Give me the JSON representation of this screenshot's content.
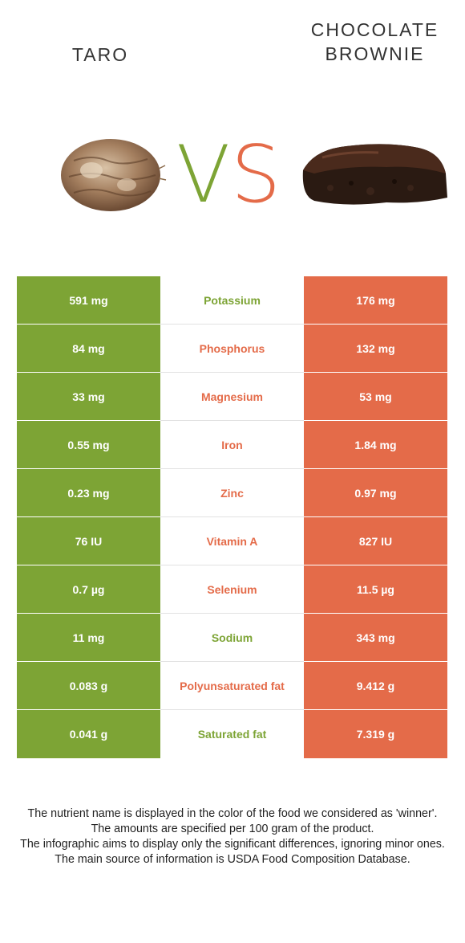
{
  "header": {
    "left_title": "TARO",
    "right_title_line1": "CHOCOLATE",
    "right_title_line2": "BROWNIE",
    "vs_v": "V",
    "vs_s": "S"
  },
  "colors": {
    "left_food": "#7da435",
    "right_food": "#e46b49"
  },
  "rows": [
    {
      "left": "591 mg",
      "nutrient": "Potassium",
      "right": "176 mg",
      "winner": "left"
    },
    {
      "left": "84 mg",
      "nutrient": "Phosphorus",
      "right": "132 mg",
      "winner": "right"
    },
    {
      "left": "33 mg",
      "nutrient": "Magnesium",
      "right": "53 mg",
      "winner": "right"
    },
    {
      "left": "0.55 mg",
      "nutrient": "Iron",
      "right": "1.84 mg",
      "winner": "right"
    },
    {
      "left": "0.23 mg",
      "nutrient": "Zinc",
      "right": "0.97 mg",
      "winner": "right"
    },
    {
      "left": "76 IU",
      "nutrient": "Vitamin A",
      "right": "827 IU",
      "winner": "right"
    },
    {
      "left": "0.7 µg",
      "nutrient": "Selenium",
      "right": "11.5 µg",
      "winner": "right"
    },
    {
      "left": "11 mg",
      "nutrient": "Sodium",
      "right": "343 mg",
      "winner": "left"
    },
    {
      "left": "0.083 g",
      "nutrient": "Polyunsaturated fat",
      "right": "9.412 g",
      "winner": "right"
    },
    {
      "left": "0.041 g",
      "nutrient": "Saturated fat",
      "right": "7.319 g",
      "winner": "left"
    }
  ],
  "footer": {
    "line1": "The nutrient name is displayed in the color of the food we considered as 'winner'.",
    "line2": "The amounts are specified per 100 gram of the product.",
    "line3": "The infographic aims to display only the significant differences, ignoring minor ones.",
    "line4": "The main source of information is USDA Food Composition Database."
  }
}
